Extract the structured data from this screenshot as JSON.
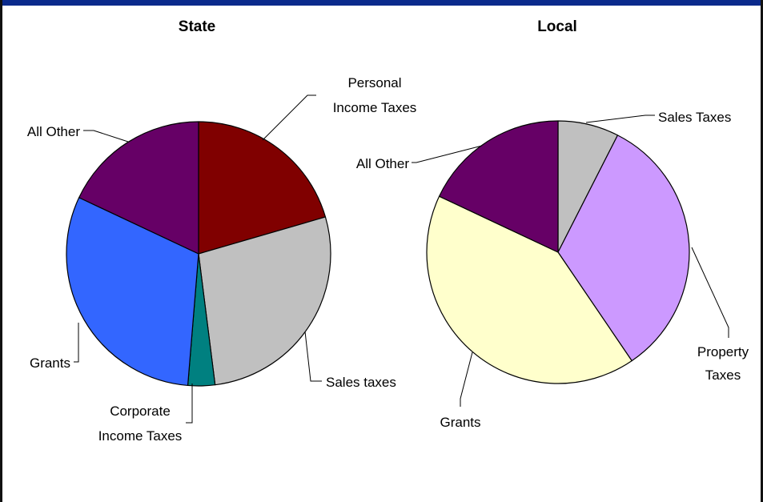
{
  "colors": {
    "frame_bar": "#0a2a8c",
    "border": "#111111"
  },
  "chart_data": [
    {
      "type": "pie",
      "title": "State",
      "slices": [
        {
          "label": "Personal Income Taxes",
          "value": 20.5,
          "color": "#800000"
        },
        {
          "label": "Sales taxes",
          "value": 27.5,
          "color": "#c0c0c0"
        },
        {
          "label": "Corporate Income Taxes",
          "value": 3.3,
          "color": "#008080"
        },
        {
          "label": "Grants",
          "value": 30.7,
          "color": "#3366ff"
        },
        {
          "label": "All Other",
          "value": 18.0,
          "color": "#660066"
        }
      ]
    },
    {
      "type": "pie",
      "title": "Local",
      "slices": [
        {
          "label": "Sales Taxes",
          "value": 7.5,
          "color": "#c0c0c0"
        },
        {
          "label": "Property Taxes",
          "value": 33.0,
          "color": "#cc99ff"
        },
        {
          "label": "Grants",
          "value": 41.5,
          "color": "#ffffcc"
        },
        {
          "label": "All Other",
          "value": 18.0,
          "color": "#660066"
        }
      ]
    }
  ]
}
